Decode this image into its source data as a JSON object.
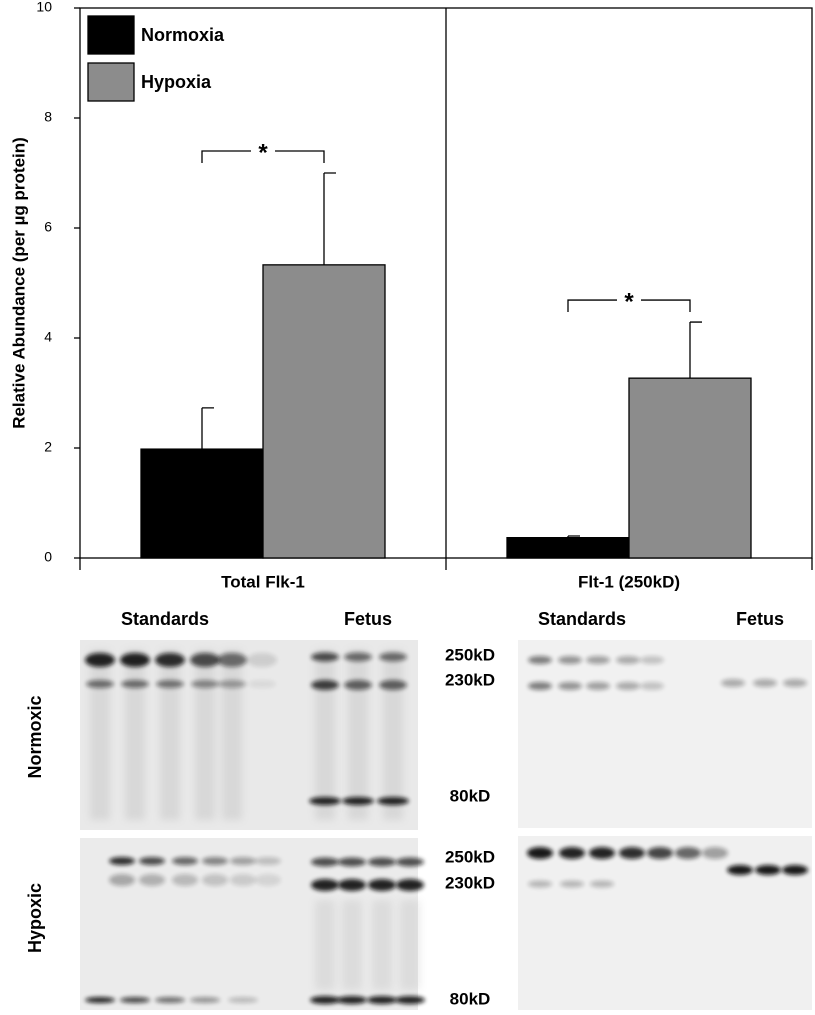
{
  "chart_data": {
    "type": "bar",
    "y_label": "Relative Abundance (per µg protein)",
    "categories": [
      "Total Flk-1",
      "Flt-1 (250kD)"
    ],
    "series": [
      {
        "name": "Normoxia",
        "color": "#000000",
        "values": [
          1.98,
          0.37
        ],
        "errors": [
          0.75,
          0.03
        ]
      },
      {
        "name": "Hypoxia",
        "color": "#8c8c8c",
        "values": [
          5.33,
          3.27
        ],
        "errors": [
          1.67,
          1.02
        ]
      }
    ],
    "annotations": [
      "*",
      "*"
    ],
    "ylim": [
      0,
      10
    ],
    "yticks": [
      0,
      2,
      4,
      6,
      8,
      10
    ],
    "legend": "upper left"
  },
  "blots": {
    "column_labels": [
      "Standards",
      "Fetus",
      "Standards",
      "Fetus"
    ],
    "row_labels": [
      "Normoxic",
      "Hypoxic"
    ],
    "marker_labels_normoxic": [
      "250kD",
      "230kD",
      "80kD"
    ],
    "marker_labels_hypoxic": [
      "250kD",
      "230kD",
      "80kD"
    ]
  }
}
